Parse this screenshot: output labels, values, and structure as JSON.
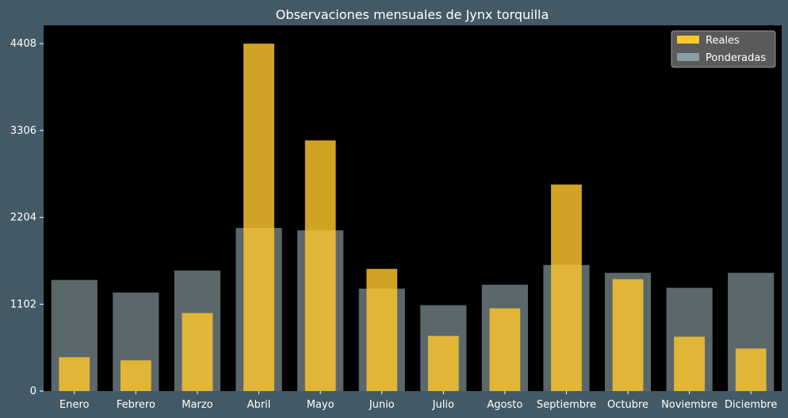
{
  "chart_data": {
    "type": "bar",
    "title": "Observaciones mensuales de Jynx torquilla",
    "xlabel": "",
    "ylabel": "",
    "categories": [
      "Enero",
      "Febrero",
      "Marzo",
      "Abril",
      "Mayo",
      "Junio",
      "Julio",
      "Agosto",
      "Septiembre",
      "Octubre",
      "Noviembre",
      "Diciembre"
    ],
    "series": [
      {
        "name": "Reales",
        "color": "#ffc72c",
        "values": [
          430,
          390,
          990,
          4408,
          3180,
          1550,
          700,
          1050,
          2620,
          1420,
          690,
          540
        ]
      },
      {
        "name": "Ponderadas",
        "color": "#8a9ea4",
        "values": [
          1410,
          1250,
          1530,
          2070,
          2040,
          1300,
          1090,
          1350,
          1600,
          1500,
          1310,
          1500
        ]
      }
    ],
    "yticks": [
      0,
      1102,
      2204,
      3306,
      4408
    ],
    "ylim": [
      0,
      4640
    ],
    "grid": false,
    "legend": "top-right",
    "colors": {
      "background": "#435a66",
      "plot_area": "#000000"
    }
  }
}
